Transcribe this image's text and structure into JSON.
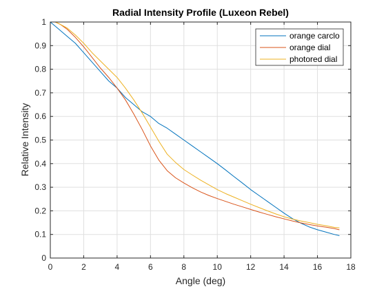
{
  "chart_data": {
    "type": "line",
    "title": "Radial Intensity Profile (Luxeon Rebel)",
    "xlabel": "Angle (deg)",
    "ylabel": "Relative Intensity",
    "xlim": [
      0,
      18
    ],
    "ylim": [
      0,
      1
    ],
    "xticks": [
      0,
      2,
      4,
      6,
      8,
      10,
      12,
      14,
      16,
      18
    ],
    "yticks": [
      0,
      0.1,
      0.2,
      0.3,
      0.4,
      0.5,
      0.6,
      0.7,
      0.8,
      0.9,
      1
    ],
    "xtick_labels": [
      "0",
      "2",
      "4",
      "6",
      "8",
      "10",
      "12",
      "14",
      "16",
      "18"
    ],
    "ytick_labels": [
      "0",
      "0.1",
      "0.2",
      "0.3",
      "0.4",
      "0.5",
      "0.6",
      "0.7",
      "0.8",
      "0.9",
      "1"
    ],
    "grid": true,
    "legend_position": "top-right",
    "series": [
      {
        "name": "orange carclo",
        "color": "#0072BD",
        "x": [
          0,
          0.5,
          1,
          1.5,
          2,
          2.5,
          3,
          3.5,
          4,
          4.5,
          5,
          5.5,
          6,
          6.5,
          7,
          7.5,
          8,
          8.5,
          9,
          9.5,
          10,
          10.5,
          11,
          11.5,
          12,
          12.5,
          13,
          13.5,
          14,
          14.5,
          15,
          15.5,
          16,
          16.5,
          17,
          17.3
        ],
        "y": [
          1.0,
          0.97,
          0.94,
          0.91,
          0.87,
          0.83,
          0.79,
          0.75,
          0.72,
          0.68,
          0.65,
          0.62,
          0.6,
          0.57,
          0.55,
          0.525,
          0.5,
          0.475,
          0.45,
          0.425,
          0.4,
          0.373,
          0.345,
          0.318,
          0.29,
          0.265,
          0.24,
          0.215,
          0.19,
          0.167,
          0.148,
          0.132,
          0.12,
          0.11,
          0.1,
          0.095
        ]
      },
      {
        "name": "orange dial",
        "color": "#D95319",
        "x": [
          0,
          0.3,
          0.6,
          1,
          1.5,
          2,
          2.5,
          3,
          3.5,
          4,
          4.5,
          5,
          5.5,
          6,
          6.5,
          7,
          7.5,
          8,
          8.5,
          9,
          9.5,
          10,
          10.5,
          11,
          11.5,
          12,
          12.5,
          13,
          13.5,
          14,
          14.5,
          15,
          15.5,
          16,
          16.5,
          17,
          17.3
        ],
        "y": [
          1.0,
          1.0,
          0.99,
          0.97,
          0.935,
          0.895,
          0.85,
          0.805,
          0.765,
          0.72,
          0.67,
          0.61,
          0.545,
          0.475,
          0.415,
          0.37,
          0.34,
          0.318,
          0.298,
          0.28,
          0.265,
          0.252,
          0.24,
          0.228,
          0.217,
          0.206,
          0.195,
          0.185,
          0.175,
          0.166,
          0.157,
          0.149,
          0.142,
          0.136,
          0.131,
          0.125,
          0.12
        ]
      },
      {
        "name": "photored dial",
        "color": "#EDB120",
        "x": [
          0,
          0.3,
          0.6,
          1,
          1.5,
          2,
          2.5,
          3,
          3.5,
          4,
          4.5,
          5,
          5.5,
          6,
          6.5,
          7,
          7.5,
          8,
          8.5,
          9,
          9.5,
          10,
          10.5,
          11,
          11.5,
          12,
          12.5,
          13,
          13.5,
          14,
          14.5,
          15,
          15.5,
          16,
          16.5,
          17,
          17.3
        ],
        "y": [
          1.0,
          1.0,
          0.99,
          0.975,
          0.945,
          0.91,
          0.87,
          0.835,
          0.8,
          0.765,
          0.72,
          0.67,
          0.615,
          0.555,
          0.495,
          0.44,
          0.405,
          0.375,
          0.352,
          0.33,
          0.31,
          0.29,
          0.273,
          0.258,
          0.243,
          0.228,
          0.214,
          0.2,
          0.187,
          0.175,
          0.165,
          0.157,
          0.15,
          0.143,
          0.137,
          0.13,
          0.128
        ]
      }
    ]
  }
}
